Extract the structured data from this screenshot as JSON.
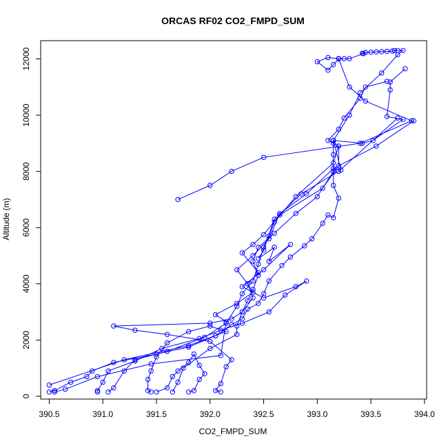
{
  "chart_data": {
    "type": "line",
    "title": "ORCAS RF02 CO2_FMPD_SUM",
    "xlabel": "CO2_FMPD_SUM",
    "ylabel": "Altitude (m)",
    "xlim": [
      390.42,
      394.02
    ],
    "ylim": [
      -100,
      12650
    ],
    "x_ticks": [
      390.5,
      391.0,
      391.5,
      392.0,
      392.5,
      393.0,
      393.5,
      394.0
    ],
    "x_tick_labels": [
      "390.5",
      "391.0",
      "391.5",
      "392.0",
      "392.5",
      "393.0",
      "393.5",
      "394.0"
    ],
    "y_ticks": [
      0,
      2000,
      4000,
      6000,
      8000,
      10000,
      12000
    ],
    "y_tick_labels": [
      "0",
      "2000",
      "4000",
      "6000",
      "8000",
      "10000",
      "12000"
    ],
    "grid": false,
    "color": "#0000ff",
    "series": [
      {
        "values": [
          [
            392.1,
            150
          ],
          [
            392.05,
            200
          ],
          [
            392.1,
            450
          ],
          [
            392.15,
            1050
          ],
          [
            392.2,
            1300
          ],
          [
            392.0,
            1950
          ],
          [
            391.6,
            2200
          ],
          [
            391.3,
            2350
          ],
          [
            391.1,
            2500
          ],
          [
            392.0,
            2600
          ],
          [
            392.2,
            2750
          ],
          [
            392.3,
            3000
          ],
          [
            392.35,
            3400
          ],
          [
            392.4,
            3800
          ],
          [
            392.45,
            4300
          ],
          [
            392.4,
            4800
          ],
          [
            392.45,
            5300
          ],
          [
            392.6,
            5800
          ],
          [
            392.8,
            6500
          ],
          [
            393.0,
            7100
          ],
          [
            393.15,
            8000
          ],
          [
            393.15,
            8600
          ],
          [
            393.15,
            9000
          ],
          [
            393.15,
            9100
          ],
          [
            393.3,
            10000
          ],
          [
            393.4,
            10800
          ],
          [
            393.6,
            11500
          ],
          [
            393.75,
            12150
          ],
          [
            393.8,
            12300
          ],
          [
            393.75,
            12300
          ],
          [
            393.72,
            12300
          ],
          [
            393.7,
            12280
          ],
          [
            393.65,
            12270
          ],
          [
            393.6,
            12260
          ],
          [
            393.55,
            12250
          ],
          [
            393.5,
            12240
          ],
          [
            393.45,
            12230
          ],
          [
            393.42,
            12200
          ],
          [
            393.43,
            12190
          ],
          [
            393.3,
            12010
          ],
          [
            393.25,
            12010
          ],
          [
            393.2,
            12010
          ]
        ]
      },
      {
        "values": [
          [
            393.2,
            12010
          ],
          [
            393.1,
            12050
          ],
          [
            393.0,
            11900
          ],
          [
            393.1,
            11600
          ],
          [
            393.15,
            11800
          ],
          [
            393.2,
            12000
          ],
          [
            393.3,
            11000
          ],
          [
            393.45,
            10500
          ],
          [
            393.88,
            9800
          ],
          [
            393.4,
            9000
          ],
          [
            392.5,
            8500
          ],
          [
            392.2,
            8000
          ],
          [
            392.0,
            7500
          ],
          [
            391.7,
            7000
          ]
        ]
      },
      {
        "values": [
          [
            393.82,
            11650
          ],
          [
            393.68,
            11180
          ],
          [
            393.68,
            10900
          ],
          [
            393.65,
            9950
          ],
          [
            393.8,
            9850
          ],
          [
            393.52,
            9100
          ],
          [
            393.42,
            9000
          ],
          [
            393.15,
            9100
          ],
          [
            393.22,
            8050
          ],
          [
            393.15,
            8100
          ],
          [
            393.15,
            7500
          ],
          [
            393.2,
            7050
          ],
          [
            393.15,
            6350
          ],
          [
            393.1,
            6450
          ],
          [
            393.05,
            6150
          ],
          [
            392.95,
            5600
          ],
          [
            392.88,
            5350
          ],
          [
            392.75,
            4950
          ],
          [
            392.67,
            4650
          ],
          [
            392.55,
            4100
          ],
          [
            392.5,
            3650
          ],
          [
            392.45,
            3300
          ],
          [
            392.35,
            3100
          ],
          [
            392.3,
            2750
          ],
          [
            392.2,
            2550
          ],
          [
            392.05,
            2150
          ]
        ]
      },
      {
        "values": [
          [
            392.05,
            2150
          ],
          [
            391.8,
            1750
          ],
          [
            391.5,
            1500
          ],
          [
            391.1,
            1200
          ],
          [
            390.9,
            900
          ],
          [
            390.85,
            700
          ],
          [
            390.7,
            500
          ],
          [
            390.55,
            200
          ],
          [
            390.5,
            150
          ]
        ]
      },
      {
        "values": [
          [
            390.5,
            400
          ],
          [
            391.2,
            1300
          ],
          [
            391.8,
            1800
          ],
          [
            392.15,
            2300
          ],
          [
            392.0,
            2500
          ],
          [
            391.8,
            2300
          ],
          [
            391.6,
            1900
          ],
          [
            391.5,
            1400
          ],
          [
            391.45,
            900
          ],
          [
            391.42,
            600
          ],
          [
            391.42,
            200
          ],
          [
            391.45,
            150
          ]
        ]
      },
      {
        "values": [
          [
            391.5,
            150
          ],
          [
            391.6,
            300
          ],
          [
            391.65,
            700
          ],
          [
            391.7,
            900
          ],
          [
            391.8,
            1200
          ],
          [
            391.85,
            1500
          ],
          [
            391.9,
            1100
          ],
          [
            391.95,
            800
          ],
          [
            391.9,
            600
          ],
          [
            391.85,
            200
          ],
          [
            391.8,
            150
          ]
        ]
      },
      {
        "values": [
          [
            391.65,
            150
          ],
          [
            391.7,
            500
          ],
          [
            391.75,
            1000
          ],
          [
            392.0,
            1700
          ],
          [
            392.25,
            2200
          ],
          [
            392.25,
            2500
          ],
          [
            392.3,
            3000
          ],
          [
            392.4,
            3500
          ],
          [
            392.35,
            4000
          ],
          [
            392.25,
            4500
          ],
          [
            392.4,
            5000
          ],
          [
            392.55,
            5600
          ],
          [
            392.65,
            6500
          ],
          [
            392.9,
            7200
          ],
          [
            393.15,
            8100
          ],
          [
            393.55,
            8900
          ],
          [
            393.9,
            9800
          ]
        ]
      },
      {
        "values": [
          [
            393.75,
            9900
          ],
          [
            393.2,
            8000
          ],
          [
            392.85,
            7200
          ],
          [
            392.6,
            6300
          ],
          [
            392.5,
            5200
          ],
          [
            392.45,
            4900
          ],
          [
            392.6,
            5300
          ],
          [
            392.55,
            4800
          ],
          [
            392.75,
            5400
          ],
          [
            392.5,
            4500
          ],
          [
            392.3,
            3900
          ],
          [
            392.5,
            3500
          ],
          [
            392.8,
            3900
          ],
          [
            392.9,
            4100
          ],
          [
            392.7,
            3600
          ],
          [
            392.55,
            3000
          ],
          [
            392.3,
            2600
          ],
          [
            392.1,
            2350
          ],
          [
            391.9,
            2050
          ],
          [
            391.55,
            1700
          ],
          [
            391.3,
            1250
          ],
          [
            391.05,
            900
          ],
          [
            391.0,
            500
          ],
          [
            390.95,
            200
          ],
          [
            390.95,
            150
          ]
        ]
      },
      {
        "values": [
          [
            391.05,
            150
          ],
          [
            391.1,
            300
          ],
          [
            391.2,
            900
          ],
          [
            391.3,
            1300
          ],
          [
            391.6,
            1600
          ],
          [
            391.95,
            2100
          ],
          [
            392.15,
            2600
          ],
          [
            392.25,
            3200
          ],
          [
            392.3,
            3650
          ],
          [
            392.4,
            4100
          ],
          [
            392.45,
            4700
          ],
          [
            392.5,
            5300
          ],
          [
            392.55,
            5700
          ],
          [
            392.6,
            6200
          ],
          [
            392.8,
            7100
          ],
          [
            393.15,
            8300
          ],
          [
            393.2,
            8900
          ],
          [
            393.1,
            9100
          ],
          [
            393.2,
            9500
          ],
          [
            393.25,
            9900
          ],
          [
            393.4,
            10600
          ],
          [
            393.45,
            11000
          ],
          [
            393.65,
            11200
          ]
        ]
      },
      {
        "values": [
          [
            390.55,
            150
          ],
          [
            390.65,
            250
          ],
          [
            390.95,
            700
          ],
          [
            391.45,
            1150
          ],
          [
            392.1,
            1450
          ],
          [
            392.15,
            2650
          ],
          [
            392.05,
            2900
          ],
          [
            392.25,
            3300
          ],
          [
            392.4,
            3700
          ],
          [
            392.35,
            4000
          ],
          [
            392.45,
            4400
          ],
          [
            392.3,
            5100
          ],
          [
            392.4,
            5400
          ],
          [
            392.5,
            5750
          ],
          [
            392.65,
            6450
          ],
          [
            393.05,
            7400
          ],
          [
            393.2,
            8200
          ],
          [
            393.2,
            8900
          ]
        ]
      }
    ]
  }
}
